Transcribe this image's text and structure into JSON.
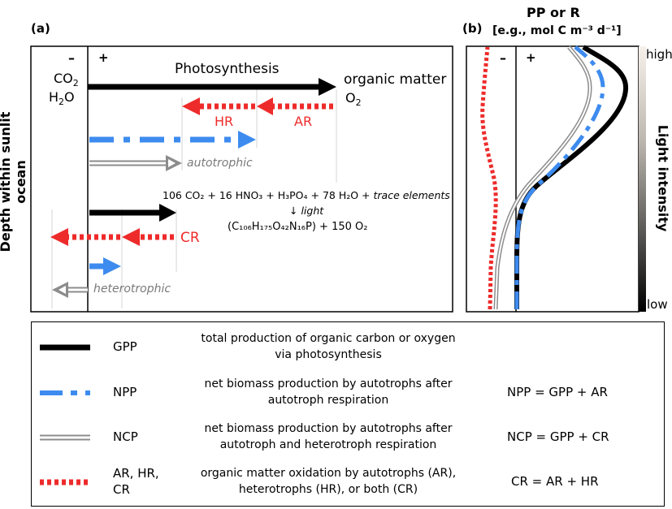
{
  "panel_a": {
    "label": "(a)",
    "y_axis_label": "Depth within sunlit ocean",
    "minus": "–",
    "plus": "+",
    "co2": "CO",
    "co2_sub": "2",
    "h2o": "H",
    "h2o_sub": "2",
    "h2o_tail": "O",
    "photosynthesis": "Photosynthesis",
    "organic_matter": "organic matter",
    "o2": "O",
    "o2_sub": "2",
    "hr": "HR",
    "ar": "AR",
    "autotrophic": "autotrophic",
    "cr": "CR",
    "heterotrophic": "heterotrophic",
    "eq_line1": "106 CO₂ + 16 HNO₃ + H₃PO₄ + 78 H₂O + trace elements",
    "eq_line1_plain": "106 CO₂ + 16 HNO₃ + H₃PO₄ + 78 H₂O + ",
    "eq_line1_italic": "trace elements",
    "eq_arrow": "↓ ",
    "eq_light": "light",
    "eq_line3": "(C₁₀₆H₁₇₅O₄₂N₁₆P) + 150 O₂"
  },
  "panel_b": {
    "label": "(b)",
    "title_line1": "PP or R",
    "title_line2": "[e.g., mol C m⁻³ d⁻¹]",
    "minus": "–",
    "plus": "+",
    "light_intensity": "Light intensity",
    "high": "high",
    "low": "low"
  },
  "legend": {
    "rows": [
      {
        "name": "GPP",
        "desc1": "total production of organic carbon or oxygen",
        "desc2": "via photosynthesis",
        "eq": ""
      },
      {
        "name": "NPP",
        "desc1": "net biomass production by autotrophs after",
        "desc2": "autotroph respiration",
        "eq": "NPP = GPP + AR"
      },
      {
        "name": "NCP",
        "desc1": "net biomass production by autotrophs after",
        "desc2": "autotroph and heterotroph respiration",
        "eq": "NCP = GPP + CR"
      },
      {
        "name1": "AR, HR,",
        "name2": "CR",
        "desc1": "organic matter oxidation by autotrophs (AR),",
        "desc2": "heterotrophs (HR), or both (CR)",
        "eq": "CR = AR + HR"
      }
    ]
  },
  "colors": {
    "gpp": "#000000",
    "npp": "#3d8bef",
    "ncp": "#8c8c8c",
    "resp": "#ee2b2b"
  }
}
